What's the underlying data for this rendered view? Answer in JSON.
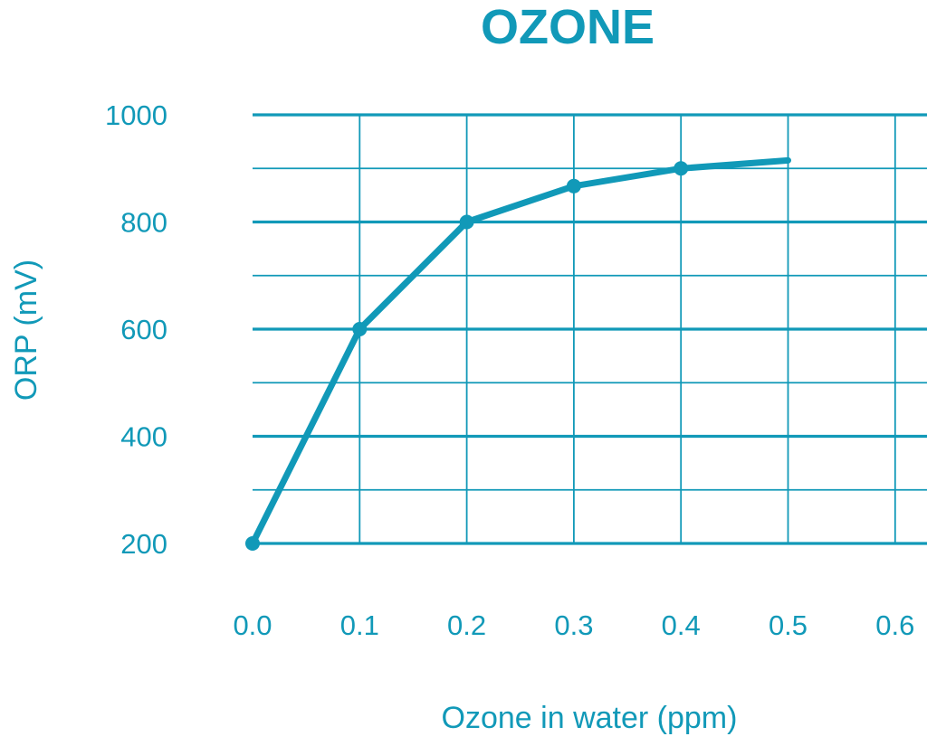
{
  "colors": {
    "accent": "#1199b8",
    "gridline": "#1199b8",
    "background": "#ffffff"
  },
  "chart_data": {
    "type": "line",
    "title": "OZONE",
    "xlabel": "Ozone in water (ppm)",
    "ylabel": "ORP (mV)",
    "xlim": [
      0.0,
      0.6
    ],
    "ylim": [
      200,
      1000
    ],
    "x_ticks": [
      "0.0",
      "0.1",
      "0.2",
      "0.3",
      "0.4",
      "0.5",
      "0.6"
    ],
    "y_ticks": [
      "200",
      "400",
      "600",
      "800",
      "1000"
    ],
    "grid": true,
    "series": [
      {
        "points": [
          {
            "x": 0.0,
            "y": 200,
            "marker": true
          },
          {
            "x": 0.1,
            "y": 600,
            "marker": true
          },
          {
            "x": 0.2,
            "y": 800,
            "marker": true
          },
          {
            "x": 0.3,
            "y": 867,
            "marker": true
          },
          {
            "x": 0.4,
            "y": 900,
            "marker": true
          },
          {
            "x": 0.5,
            "y": 915,
            "marker": false
          }
        ]
      }
    ]
  }
}
